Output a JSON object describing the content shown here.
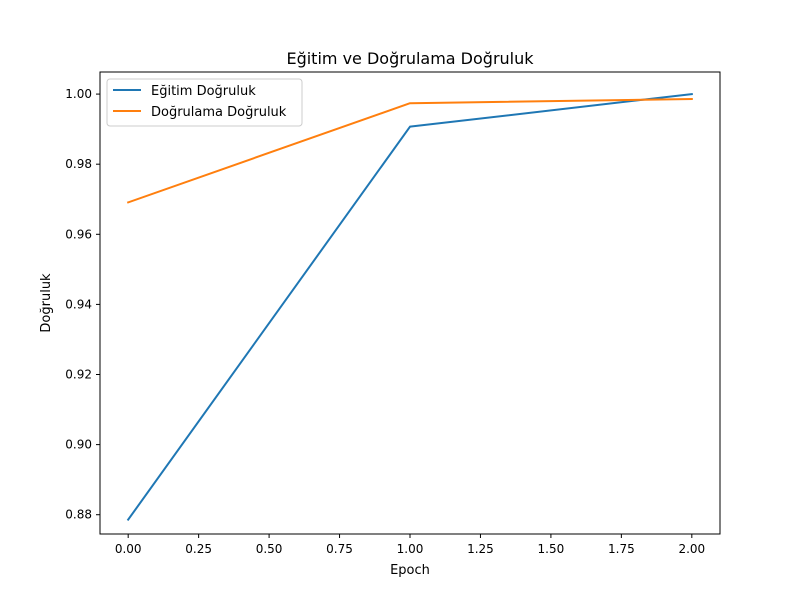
{
  "chart_data": {
    "type": "line",
    "title": "Eğitim ve Doğrulama Doğruluk",
    "xlabel": "Epoch",
    "ylabel": "Doğruluk",
    "xlim": [
      -0.1,
      2.1
    ],
    "ylim": [
      0.8745,
      1.0063
    ],
    "xticks": [
      0.0,
      0.25,
      0.5,
      0.75,
      1.0,
      1.25,
      1.5,
      1.75,
      2.0
    ],
    "xtick_labels": [
      "0.00",
      "0.25",
      "0.50",
      "0.75",
      "1.00",
      "1.25",
      "1.50",
      "1.75",
      "2.00"
    ],
    "yticks": [
      0.88,
      0.9,
      0.92,
      0.94,
      0.96,
      0.98,
      1.0
    ],
    "ytick_labels": [
      "0.88",
      "0.90",
      "0.92",
      "0.94",
      "0.96",
      "0.98",
      "1.00"
    ],
    "x": [
      0,
      1,
      2
    ],
    "series": [
      {
        "name": "Eğitim Doğruluk",
        "values": [
          0.8786,
          0.9907,
          1.0
        ],
        "color": "#1f77b4"
      },
      {
        "name": "Doğrulama Doğruluk",
        "values": [
          0.9691,
          0.9974,
          0.9986
        ],
        "color": "#ff7f0e"
      }
    ],
    "grid": false,
    "legend_position": "upper-left"
  }
}
